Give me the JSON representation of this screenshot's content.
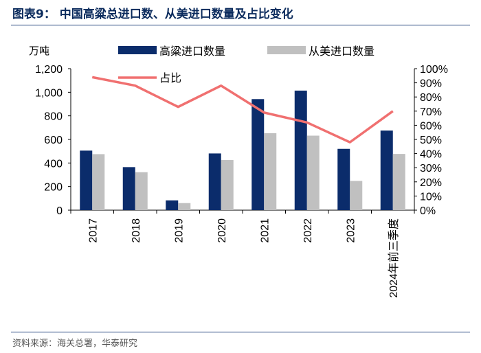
{
  "header": {
    "title": "图表9：  中国高粱总进口数、从美进口数量及占比变化"
  },
  "footer": {
    "source": "资料来源：海关总署，华泰研究"
  },
  "colors": {
    "series_sorghum": "#0b2c6b",
    "series_us": "#c0c0c0",
    "series_share": "#f07070",
    "rule": "#1f3f7a"
  },
  "chart_data": {
    "type": "bar",
    "categories": [
      "2017",
      "2018",
      "2019",
      "2020",
      "2021",
      "2022",
      "2023",
      "2024年前三季度"
    ],
    "series": [
      {
        "name": "高粱进口数量",
        "axis": "left",
        "type": "bar",
        "values": [
          505,
          365,
          83,
          481,
          942,
          1014,
          520,
          675
        ]
      },
      {
        "name": "从美进口数量",
        "axis": "left",
        "type": "bar",
        "values": [
          475,
          322,
          60,
          425,
          653,
          632,
          248,
          477
        ]
      },
      {
        "name": "占比",
        "axis": "right",
        "type": "line",
        "values": [
          94,
          88,
          73,
          88,
          69,
          62,
          48,
          70
        ]
      }
    ],
    "ylabel": "万吨",
    "ylim": [
      0,
      1200
    ],
    "yticks": [
      "0",
      "200",
      "400",
      "600",
      "800",
      "1,000",
      "1,200"
    ],
    "y2lim": [
      0,
      100
    ],
    "y2ticks": [
      "0%",
      "10%",
      "20%",
      "30%",
      "40%",
      "50%",
      "60%",
      "70%",
      "80%",
      "90%",
      "100%"
    ],
    "legend_position": "top",
    "grid": false
  }
}
